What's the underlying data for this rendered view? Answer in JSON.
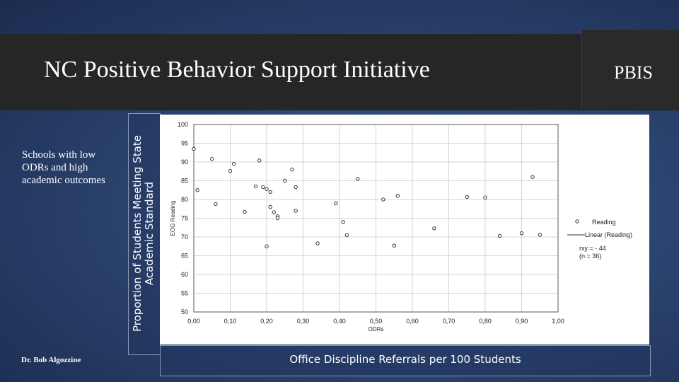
{
  "header": {
    "title": "NC Positive Behavior Support Initiative",
    "brand": "PBIS"
  },
  "side_note": "Schools with low ODRs and high academic outcomes",
  "author": "Dr. Bob Algozzine",
  "outer_ylabel": "Proportion of Students Meeting State Academic Standard",
  "outer_xlabel": "Office Discipline Referrals per 100 Students",
  "chart_data": {
    "type": "scatter",
    "xlabel": "ODRs",
    "ylabel": "EOG Reading",
    "xlim": [
      0,
      1.0
    ],
    "ylim": [
      50,
      100
    ],
    "x_ticks": [
      "0,00",
      "0,10",
      "0,20",
      "0,30",
      "0,40",
      "0,50",
      "0,60",
      "0,70",
      "0,80",
      "0,90",
      "1,00"
    ],
    "y_ticks": [
      "100",
      "95",
      "90",
      "85",
      "80",
      "75",
      "70",
      "65",
      "60",
      "55",
      "50"
    ],
    "grid": true,
    "legend": {
      "entries": [
        "Reading",
        "Linear (Reading)"
      ],
      "placement": "right"
    },
    "annotation": {
      "line1": "rxy = -.44",
      "line2": "(n = 36)"
    },
    "series": [
      {
        "name": "Reading",
        "points": [
          [
            0.0,
            93.5
          ],
          [
            0.01,
            82.5
          ],
          [
            0.05,
            90.8
          ],
          [
            0.06,
            78.8
          ],
          [
            0.1,
            87.6
          ],
          [
            0.11,
            89.5
          ],
          [
            0.14,
            76.7
          ],
          [
            0.17,
            83.5
          ],
          [
            0.18,
            90.4
          ],
          [
            0.19,
            83.3
          ],
          [
            0.2,
            82.8
          ],
          [
            0.2,
            67.5
          ],
          [
            0.21,
            78.0
          ],
          [
            0.21,
            82.0
          ],
          [
            0.22,
            76.6
          ],
          [
            0.23,
            75.5
          ],
          [
            0.23,
            75.0
          ],
          [
            0.25,
            85.0
          ],
          [
            0.27,
            88.0
          ],
          [
            0.28,
            77.0
          ],
          [
            0.28,
            83.3
          ],
          [
            0.34,
            68.3
          ],
          [
            0.39,
            79.0
          ],
          [
            0.41,
            74.0
          ],
          [
            0.42,
            70.5
          ],
          [
            0.45,
            85.5
          ],
          [
            0.52,
            80.0
          ],
          [
            0.55,
            67.7
          ],
          [
            0.56,
            81.0
          ],
          [
            0.66,
            72.3
          ],
          [
            0.75,
            80.7
          ],
          [
            0.8,
            80.5
          ],
          [
            0.84,
            70.3
          ],
          [
            0.93,
            86.0
          ],
          [
            0.95,
            70.6
          ],
          [
            0.9,
            71.0
          ]
        ]
      }
    ]
  }
}
